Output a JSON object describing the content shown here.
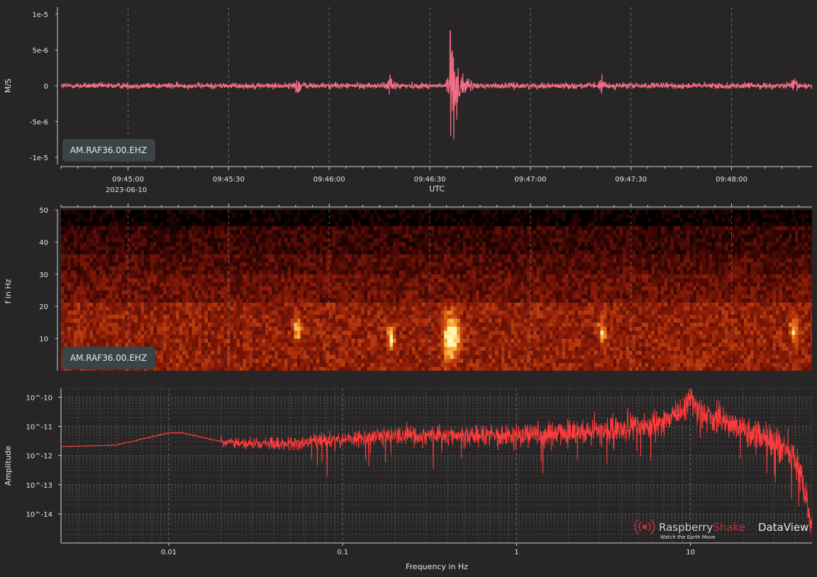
{
  "colors": {
    "background": "#272525",
    "waveform": "#f26d85",
    "spectrum": "#ff3b3b",
    "grid": "#6a6a6a",
    "brand_red": "#c0303a",
    "badge_bg": "#3a4346"
  },
  "chart_data": [
    {
      "type": "line",
      "panel": "waveform",
      "ylabel": "M/S",
      "y_ticks": [
        "1e-5",
        "5e-6",
        "0",
        "-5e-6",
        "-1e-5"
      ],
      "ylim": [
        -1.1e-05,
        1.1e-05
      ],
      "xlabel": "UTC",
      "x_ticks": [
        "09:45:00",
        "09:45:30",
        "09:46:00",
        "09:46:30",
        "09:47:00",
        "09:47:30",
        "09:48:00"
      ],
      "x_range": [
        "09:44:40",
        "09:48:24"
      ],
      "date_label": "2023-06-10",
      "station_label": "AM.RAF36.00.EHZ",
      "grid": "vertical dashed",
      "noise_amplitude": 4e-07,
      "events": [
        {
          "time": "09:45:50",
          "amplitude": 1.2e-06
        },
        {
          "time": "09:46:18",
          "amplitude": 1.6e-06
        },
        {
          "time": "09:46:36",
          "amplitude": 1e-05
        },
        {
          "time": "09:47:21",
          "amplitude": 1e-06
        },
        {
          "time": "09:48:18",
          "amplitude": 1.1e-06
        }
      ]
    },
    {
      "type": "heatmap",
      "panel": "spectrogram",
      "ylabel": "f in Hz",
      "y_ticks": [
        "10",
        "20",
        "30",
        "40",
        "50"
      ],
      "ylim": [
        0,
        50
      ],
      "x_range": [
        "09:44:40",
        "09:48:24"
      ],
      "station_label": "AM.RAF36.00.EHZ",
      "colormap": "black-red-orange-yellow",
      "bands": [
        {
          "f_low": 0,
          "f_high": 21,
          "level": 0.48
        },
        {
          "f_low": 21,
          "f_high": 29,
          "level": 0.36
        },
        {
          "f_low": 29,
          "f_high": 36,
          "level": 0.28
        },
        {
          "f_low": 36,
          "f_high": 45,
          "level": 0.2
        },
        {
          "f_low": 45,
          "f_high": 50,
          "level": 0.04
        }
      ],
      "hotspots": [
        {
          "time": "09:46:36",
          "f": 10,
          "level": 1.0
        },
        {
          "time": "09:46:18",
          "f": 10,
          "level": 0.75
        },
        {
          "time": "09:45:50",
          "f": 12,
          "level": 0.7
        },
        {
          "time": "09:47:21",
          "f": 12,
          "level": 0.65
        },
        {
          "time": "09:48:18",
          "f": 12,
          "level": 0.65
        }
      ]
    },
    {
      "type": "line",
      "panel": "spectrum",
      "xlabel": "Frequency in Hz",
      "ylabel": "Amplitude",
      "x_scale": "log",
      "y_scale": "log",
      "xlim": [
        0.0024,
        50
      ],
      "ylim": [
        1e-15,
        2e-10
      ],
      "x_ticks": [
        "0.01",
        "0.1",
        "1",
        "10"
      ],
      "y_ticks": [
        "10^-10",
        "10^-11",
        "10^-12",
        "10^-13",
        "10^-14"
      ],
      "grid": "dotted minor + major",
      "trend": {
        "f": [
          0.0024,
          0.005,
          0.01,
          0.012,
          0.02,
          0.03,
          0.05,
          0.1,
          0.2,
          0.5,
          1,
          2,
          5,
          8,
          10,
          15,
          25,
          40,
          50
        ],
        "amp": [
          2e-12,
          2.3e-12,
          6e-12,
          6e-12,
          3e-12,
          2.5e-12,
          2.5e-12,
          3.5e-12,
          5e-12,
          5e-12,
          5e-12,
          6e-12,
          9e-12,
          2e-11,
          4e-11,
          1.5e-11,
          5e-12,
          1e-12,
          5e-15
        ]
      },
      "peak": {
        "f": 10,
        "amp": 1.5e-10
      }
    }
  ],
  "watermark": {
    "brand_part1": "Raspberry",
    "brand_part2": "Shake",
    "product": "DataView",
    "tagline": "Watch the Earth Move"
  }
}
